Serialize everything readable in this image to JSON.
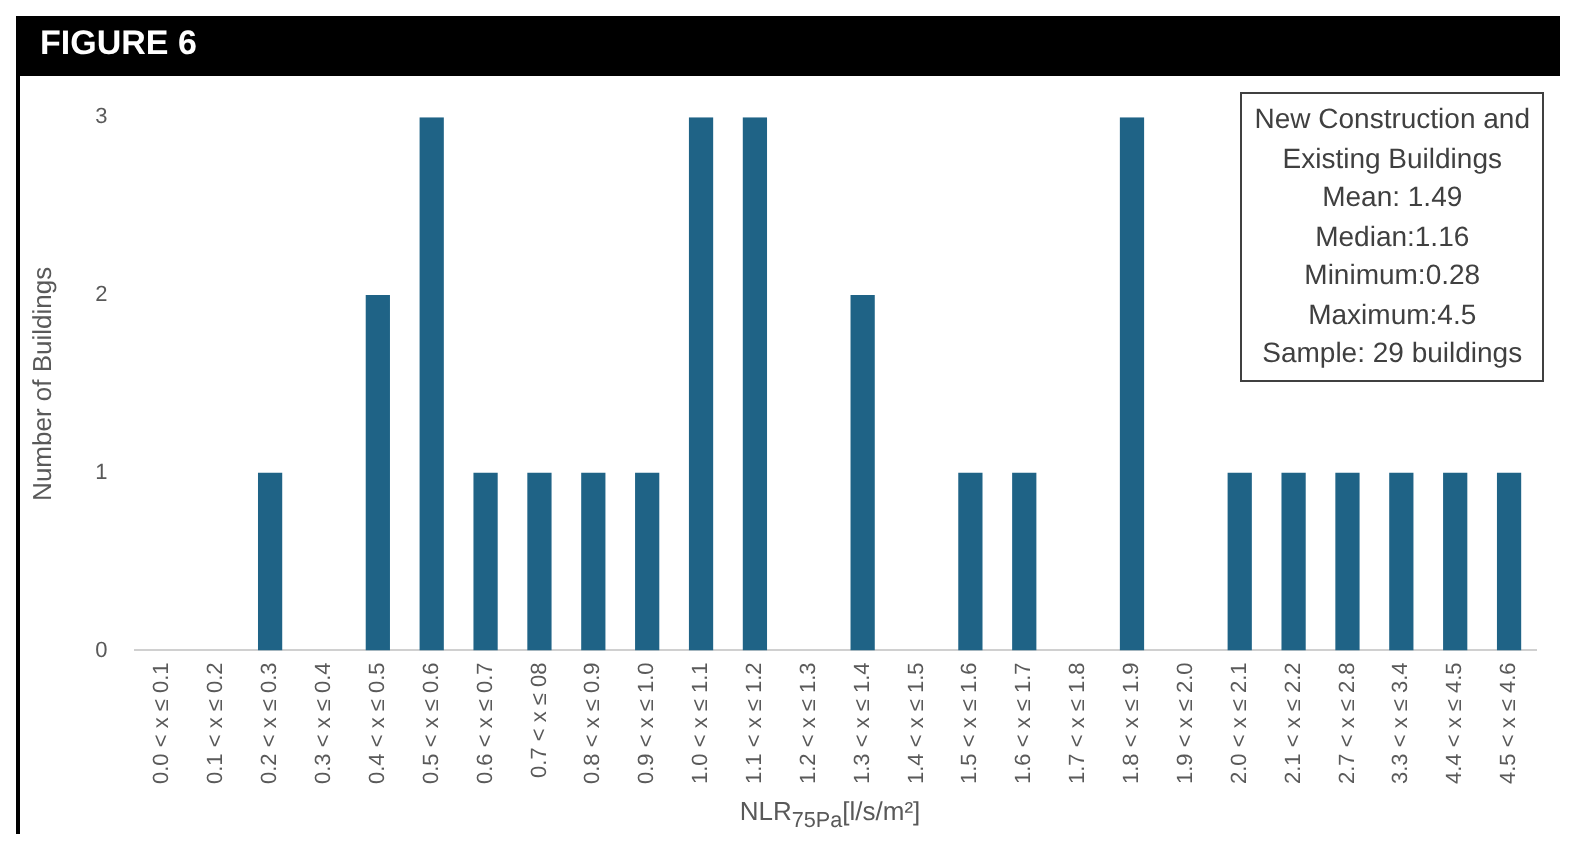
{
  "chart_data": {
    "type": "bar",
    "title": "FIGURE 6",
    "xlabel": "NLR$_{75Pa}$[l/s/m²]",
    "ylabel": "Number of Buildings",
    "categories": [
      "0.0 < x ≤ 0.1",
      "0.1 < x ≤ 0.2",
      "0.2 < x ≤ 0.3",
      "0.3 < x ≤ 0.4",
      "0.4 < x ≤ 0.5",
      "0.5 < x ≤ 0.6",
      "0.6 < x ≤ 0.7",
      "0.7 < x ≤ 08",
      "0.8 < x ≤ 0.9",
      "0.9 < x ≤ 1.0",
      "1.0 < x ≤ 1.1",
      "1.1 < x ≤ 1.2",
      "1.2 < x ≤ 1.3",
      "1.3 < x ≤ 1.4",
      "1.4 < x ≤ 1.5",
      "1.5 < x ≤ 1.6",
      "1.6 < x ≤ 1.7",
      "1.7 < x ≤ 1.8",
      "1.8 < x ≤ 1.9",
      "1.9 < x ≤ 2.0",
      "2.0 < x ≤ 2.1",
      "2.1 < x ≤ 2.2",
      "2.7 < x ≤ 2.8",
      "3.3 < x ≤ 3.4",
      "4.4 < x ≤ 4.5",
      "4.5 < x ≤ 4.6"
    ],
    "values": [
      0,
      0,
      1,
      0,
      2,
      3,
      1,
      1,
      1,
      1,
      3,
      3,
      0,
      2,
      0,
      1,
      1,
      0,
      3,
      0,
      1,
      1,
      1,
      1,
      1,
      1
    ],
    "color": "#1f6386",
    "ylim": [
      0,
      3
    ],
    "yticks": [
      0,
      1,
      2,
      3
    ],
    "grid": false,
    "annotations": [
      "New Construction and",
      "Existing Buildings",
      "Mean: 1.49",
      "Median:1.16",
      "Minimum:0.28",
      "Maximum:4.5",
      "Sample: 29 buildings"
    ]
  }
}
